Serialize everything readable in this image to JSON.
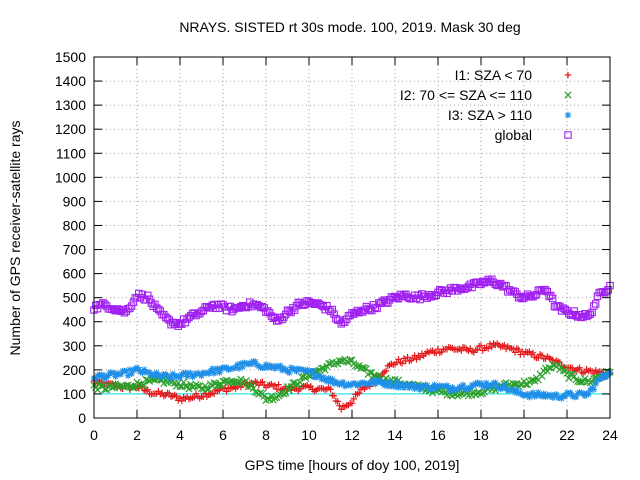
{
  "chart_data": {
    "type": "scatter",
    "title": "NRAYS. SISTED rt 30s mode. 100, 2019. Mask 30 deg",
    "xlabel": "GPS time [hours of doy 100, 2019]",
    "ylabel": "Number of GPS receiver-satellite rays",
    "xlim": [
      0,
      24
    ],
    "ylim": [
      0,
      1500
    ],
    "xticks": [
      0,
      2,
      4,
      6,
      8,
      10,
      12,
      14,
      16,
      18,
      20,
      22,
      24
    ],
    "yticks": [
      0,
      100,
      200,
      300,
      400,
      500,
      600,
      700,
      800,
      900,
      1000,
      1100,
      1200,
      1300,
      1400,
      1500
    ],
    "grid": true,
    "legend_position": "top-right",
    "series": [
      {
        "name": "I1: SZA < 70",
        "marker": "plus",
        "color": "#e41a1c",
        "x": [
          0,
          0.5,
          1,
          1.5,
          2,
          2.5,
          3,
          3.5,
          4,
          4.5,
          5,
          5.5,
          6,
          6.5,
          7,
          7.5,
          8,
          8.5,
          9,
          9.5,
          10,
          10.5,
          11,
          11.5,
          12,
          12.5,
          13,
          13.5,
          14,
          14.5,
          15,
          15.5,
          16,
          16.5,
          17,
          17.5,
          18,
          18.5,
          19,
          19.5,
          20,
          20.5,
          21,
          21.5,
          22,
          22.5,
          23,
          23.5,
          24
        ],
        "values": [
          150,
          140,
          135,
          125,
          130,
          110,
          100,
          95,
          80,
          85,
          95,
          105,
          120,
          125,
          140,
          145,
          135,
          130,
          120,
          125,
          125,
          120,
          115,
          40,
          70,
          120,
          150,
          200,
          230,
          240,
          250,
          270,
          280,
          290,
          285,
          280,
          290,
          300,
          295,
          285,
          270,
          260,
          250,
          230,
          215,
          200,
          195,
          190,
          185
        ]
      },
      {
        "name": "I2: 70 <= SZA <= 110",
        "marker": "cross",
        "color": "#2ca02c",
        "x": [
          0,
          0.5,
          1,
          1.5,
          2,
          2.5,
          3,
          3.5,
          4,
          4.5,
          5,
          5.5,
          6,
          6.5,
          7,
          7.5,
          8,
          8.5,
          9,
          9.5,
          10,
          10.5,
          11,
          11.5,
          12,
          12.5,
          13,
          13.5,
          14,
          14.5,
          15,
          15.5,
          16,
          16.5,
          17,
          17.5,
          18,
          18.5,
          19,
          19.5,
          20,
          20.5,
          21,
          21.5,
          22,
          22.5,
          23,
          23.5,
          24
        ],
        "values": [
          130,
          125,
          130,
          130,
          140,
          150,
          155,
          150,
          140,
          130,
          125,
          135,
          150,
          160,
          150,
          120,
          80,
          90,
          120,
          150,
          180,
          200,
          220,
          240,
          230,
          200,
          180,
          160,
          150,
          140,
          130,
          120,
          110,
          105,
          100,
          105,
          110,
          120,
          135,
          140,
          145,
          150,
          200,
          220,
          180,
          160,
          150,
          170,
          190
        ]
      },
      {
        "name": "I3: SZA > 110",
        "marker": "star",
        "color": "#1f8fe8",
        "x": [
          0,
          0.5,
          1,
          1.5,
          2,
          2.5,
          3,
          3.5,
          4,
          4.5,
          5,
          5.5,
          6,
          6.5,
          7,
          7.5,
          8,
          8.5,
          9,
          9.5,
          10,
          10.5,
          11,
          11.5,
          12,
          12.5,
          13,
          13.5,
          14,
          14.5,
          15,
          15.5,
          16,
          16.5,
          17,
          17.5,
          18,
          18.5,
          19,
          19.5,
          20,
          20.5,
          21,
          21.5,
          22,
          22.5,
          23,
          23.5,
          24
        ],
        "values": [
          170,
          175,
          180,
          185,
          200,
          185,
          175,
          170,
          175,
          180,
          185,
          195,
          200,
          210,
          220,
          225,
          215,
          210,
          200,
          195,
          190,
          175,
          155,
          145,
          140,
          145,
          150,
          145,
          140,
          135,
          130,
          130,
          130,
          125,
          130,
          135,
          140,
          140,
          130,
          110,
          100,
          95,
          95,
          90,
          95,
          95,
          100,
          160,
          190
        ]
      },
      {
        "name": "global",
        "marker": "square",
        "color": "#a020f0",
        "x": [
          0,
          0.5,
          1,
          1.5,
          2,
          2.5,
          3,
          3.5,
          4,
          4.5,
          5,
          5.5,
          6,
          6.5,
          7,
          7.5,
          8,
          8.5,
          9,
          9.5,
          10,
          10.5,
          11,
          11.5,
          12,
          12.5,
          13,
          13.5,
          14,
          14.5,
          15,
          15.5,
          16,
          16.5,
          17,
          17.5,
          18,
          18.5,
          19,
          19.5,
          20,
          20.5,
          21,
          21.5,
          22,
          22.5,
          23,
          23.5,
          24
        ],
        "values": [
          460,
          470,
          455,
          440,
          510,
          500,
          440,
          400,
          390,
          420,
          440,
          470,
          460,
          450,
          470,
          470,
          450,
          400,
          440,
          470,
          480,
          470,
          450,
          390,
          430,
          450,
          460,
          480,
          500,
          510,
          500,
          510,
          520,
          530,
          540,
          545,
          560,
          570,
          550,
          520,
          500,
          510,
          540,
          460,
          440,
          430,
          420,
          510,
          550
        ]
      }
    ],
    "reference_line": {
      "y": 100,
      "color": "#00e5ee"
    }
  }
}
